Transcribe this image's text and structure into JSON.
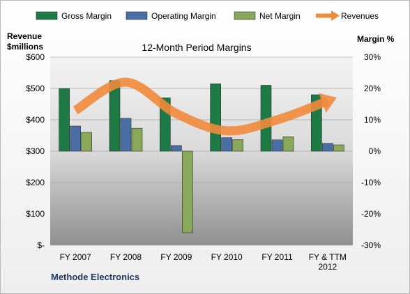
{
  "chart_data": {
    "type": "bar",
    "title": "12-Month Period Margins",
    "company": "Methode Electronics",
    "y_left_label_line1": "Revenue",
    "y_left_label_line2": "$millions",
    "y_right_label": "Margin %",
    "y_left_range": [
      0,
      600
    ],
    "y_left_ticks": [
      "$-",
      "$100",
      "$200",
      "$300",
      "$400",
      "$500",
      "$600"
    ],
    "y_right_range": [
      -30,
      30
    ],
    "y_right_ticks": [
      "-30%",
      "-20%",
      "-10%",
      "0%",
      "10%",
      "20%",
      "30%"
    ],
    "categories": [
      [
        "FY 2007"
      ],
      [
        "FY 2008"
      ],
      [
        "FY 2009"
      ],
      [
        "FY 2010"
      ],
      [
        "FY 2011"
      ],
      [
        "FY & TTM",
        "2012"
      ]
    ],
    "grid": true,
    "legend_position": "top",
    "series": [
      {
        "name": "Gross Margin",
        "kind": "bar",
        "axis": "right",
        "color": "#1e7a45",
        "values": [
          20,
          22.5,
          17,
          21.5,
          21,
          18
        ]
      },
      {
        "name": "Operating Margin",
        "kind": "bar",
        "axis": "right",
        "color": "#4a6fa5",
        "values": [
          8,
          10.5,
          1.8,
          4.3,
          3.6,
          2.5
        ]
      },
      {
        "name": "Net Margin",
        "kind": "bar",
        "axis": "right",
        "color": "#8aa85a",
        "values": [
          6,
          7.3,
          -26,
          3.7,
          4.6,
          2
        ]
      },
      {
        "name": "Revenues",
        "kind": "line",
        "axis": "left",
        "color": "#f08a3c",
        "values": [
          430,
          520,
          420,
          365,
          400,
          460
        ]
      }
    ]
  }
}
